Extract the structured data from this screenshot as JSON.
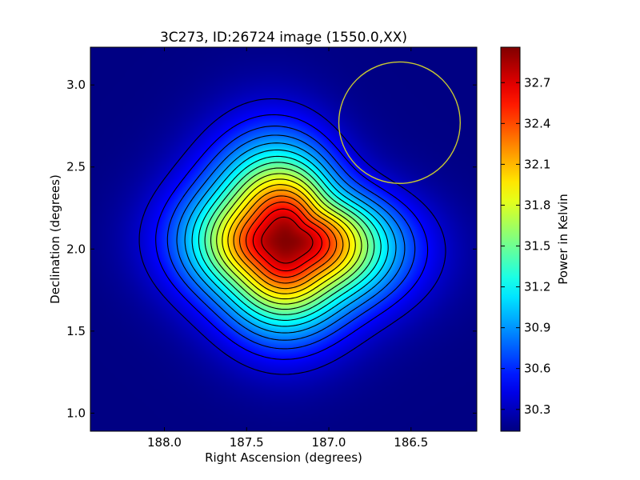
{
  "chart_data": {
    "type": "heatmap",
    "title": "3C273, ID:26724 image (1550.0,XX)",
    "xlabel": "Right Ascension (degrees)",
    "ylabel": "Declination (degrees)",
    "colorbar_label": "Power in Kelvin",
    "xlim": [
      188.45,
      186.1
    ],
    "ylim": [
      0.89,
      3.23
    ],
    "xticks": [
      {
        "value": 188.0,
        "label": "188.0"
      },
      {
        "value": 187.5,
        "label": "187.5"
      },
      {
        "value": 187.0,
        "label": "187.0"
      },
      {
        "value": 186.5,
        "label": "186.5"
      }
    ],
    "yticks": [
      {
        "value": 1.0,
        "label": "1.0"
      },
      {
        "value": 1.5,
        "label": "1.5"
      },
      {
        "value": 2.0,
        "label": "2.0"
      },
      {
        "value": 2.5,
        "label": "2.5"
      },
      {
        "value": 3.0,
        "label": "3.0"
      }
    ],
    "colorbar_range": [
      30.14,
      32.96
    ],
    "colorbar_ticks": [
      {
        "value": 30.3,
        "label": "30.3"
      },
      {
        "value": 30.6,
        "label": "30.6"
      },
      {
        "value": 30.9,
        "label": "30.9"
      },
      {
        "value": 31.2,
        "label": "31.2"
      },
      {
        "value": 31.5,
        "label": "31.5"
      },
      {
        "value": 31.8,
        "label": "31.8"
      },
      {
        "value": 32.1,
        "label": "32.1"
      },
      {
        "value": 32.4,
        "label": "32.4"
      },
      {
        "value": 32.7,
        "label": "32.7"
      }
    ],
    "colormap": "jet",
    "source_peak": {
      "ra": 187.26,
      "dec": 2.05,
      "value": 32.95
    },
    "background_level": 30.15,
    "contour_levels": [
      30.35,
      30.5,
      30.65,
      30.8,
      30.95,
      31.1,
      31.25,
      31.4,
      31.55,
      31.7,
      31.85,
      32.0,
      32.15,
      32.3,
      32.45,
      32.6,
      32.75
    ],
    "contour_color": "#000000",
    "beam_circle": {
      "ra": 186.57,
      "dec": 2.77,
      "radius_deg": 0.37,
      "color": "#c8c832"
    }
  }
}
